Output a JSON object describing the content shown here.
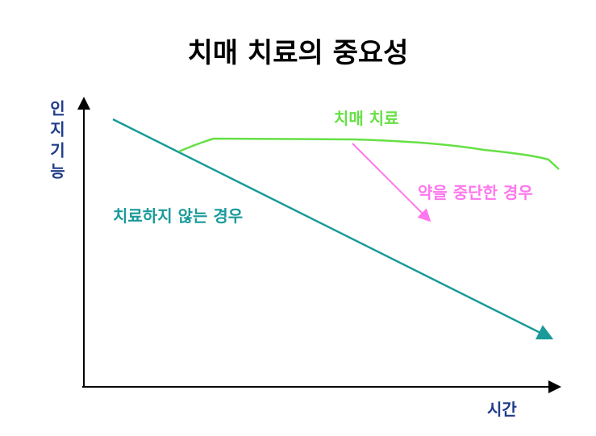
{
  "title": "치매 치료의 중요성",
  "y_axis_label": "인지기능",
  "x_axis_label": "시간",
  "lines": [
    {
      "label": "치매 치료"
    },
    {
      "label": "약을 중단한 경우"
    },
    {
      "label": "치료하지 않는 경우"
    }
  ]
}
